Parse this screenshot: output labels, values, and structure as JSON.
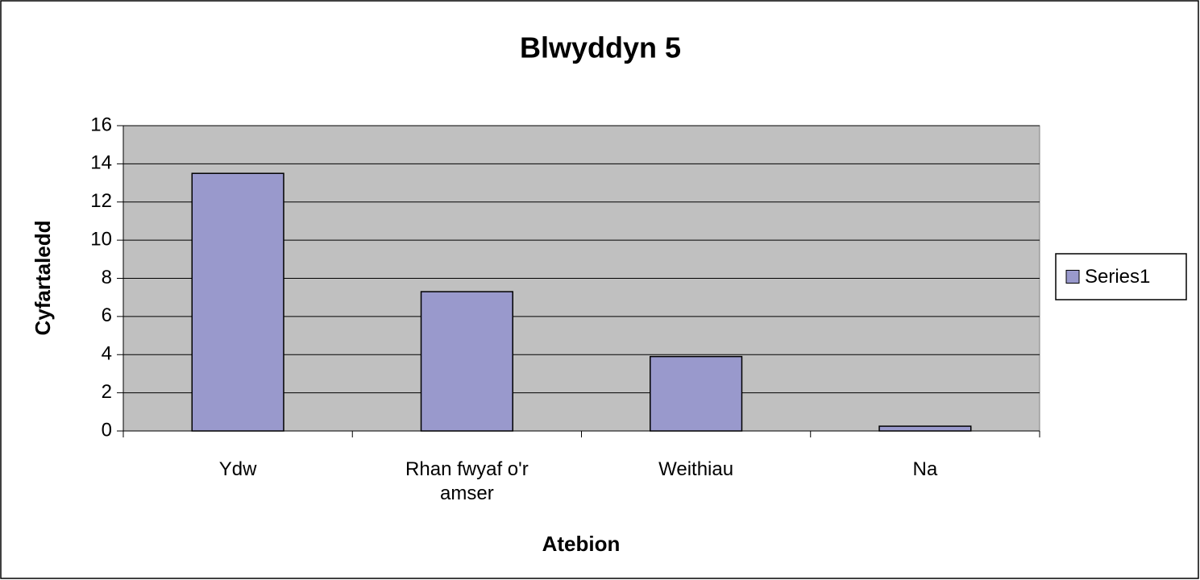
{
  "chart_data": {
    "type": "bar",
    "title": "Blwyddyn 5",
    "x_label": "Atebion",
    "y_label": "Cyfartaledd",
    "categories": [
      "Ydw",
      "Rhan fwyaf o'r amser",
      "Weithiau",
      "Na"
    ],
    "series": [
      {
        "name": "Series1",
        "color": "#9999cc",
        "values": [
          13.5,
          7.3,
          3.9,
          0.25
        ]
      }
    ],
    "ylim": [
      0,
      16
    ],
    "yticks": [
      0,
      2,
      4,
      6,
      8,
      10,
      12,
      14,
      16
    ],
    "grid": true,
    "legend": "right",
    "plot_background": "#c0c0c0"
  }
}
